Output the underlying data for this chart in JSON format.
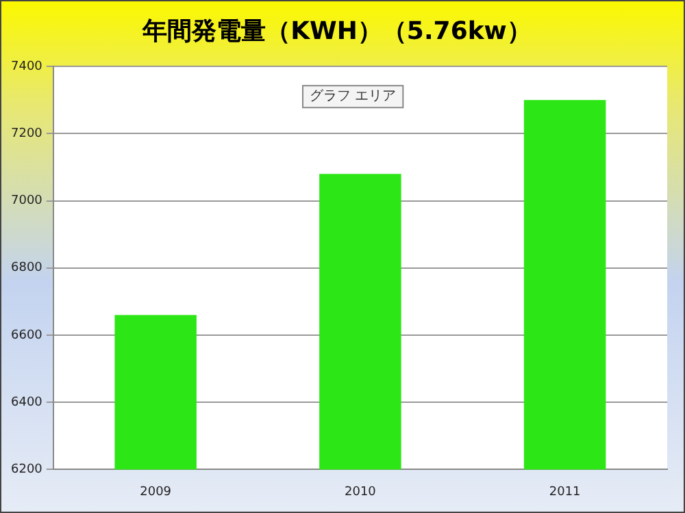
{
  "chart_data": {
    "type": "bar",
    "title": "年間発電量（KWH）（5.76kw）",
    "categories": [
      "2009",
      "2010",
      "2011"
    ],
    "values": [
      6660,
      7080,
      7300
    ],
    "color": "#2de616",
    "ylim": [
      6200,
      7400
    ],
    "yticks": [
      6200,
      6400,
      6600,
      6800,
      7000,
      7200,
      7400
    ],
    "grid": "y",
    "legend": false,
    "annotations": [
      "グラフ エリア"
    ]
  }
}
